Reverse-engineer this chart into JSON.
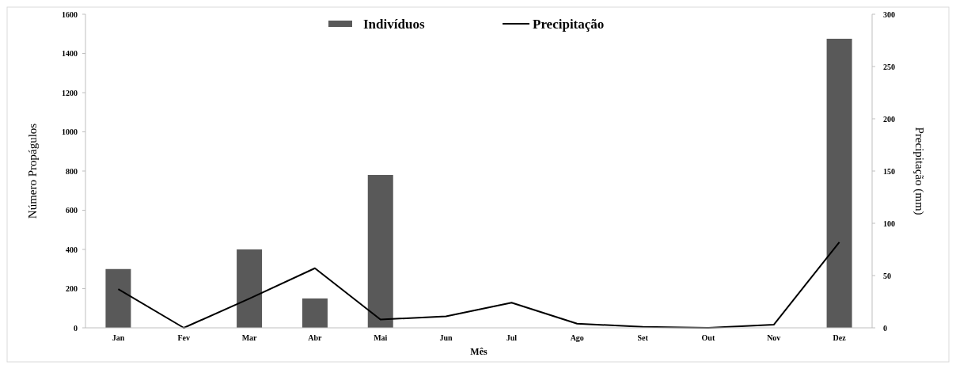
{
  "chart_data": {
    "type": "bar",
    "xlabel": "Mês",
    "ylabel": "Número Propágulos",
    "y2label": "Precipitação (mm)",
    "categories": [
      "Jan",
      "Fev",
      "Mar",
      "Abr",
      "Mai",
      "Jun",
      "Jul",
      "Ago",
      "Set",
      "Out",
      "Nov",
      "Dez"
    ],
    "series": [
      {
        "name": "Indivíduos",
        "color": "#595959",
        "values": [
          300,
          0,
          400,
          150,
          780,
          0,
          0,
          0,
          0,
          0,
          0,
          1475
        ]
      },
      {
        "name": "Precipitação",
        "type": "line",
        "axis": "y2",
        "color": "#000000",
        "values": [
          37,
          0,
          28,
          57,
          8,
          11,
          24,
          4,
          1,
          0,
          3,
          82
        ]
      }
    ],
    "ylim": [
      0,
      1600
    ],
    "yticks": [
      0,
      200,
      400,
      600,
      800,
      1000,
      1200,
      1400,
      1600
    ],
    "y2lim": [
      0,
      300
    ],
    "y2ticks": [
      0,
      50,
      100,
      150,
      200,
      250,
      300
    ],
    "legend": "top",
    "grid": false,
    "line_style": "solid"
  }
}
